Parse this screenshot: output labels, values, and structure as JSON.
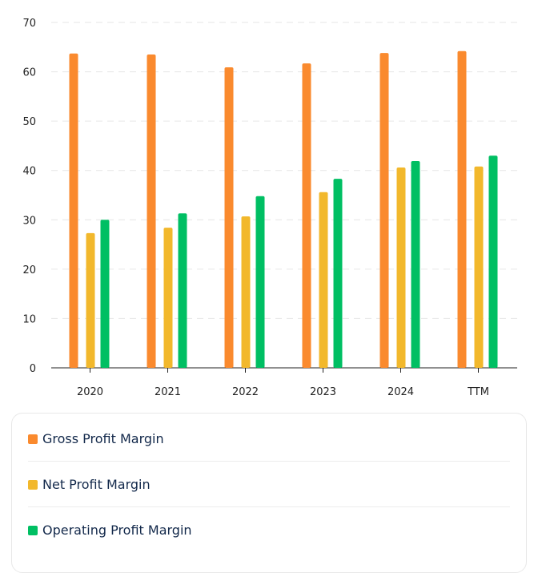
{
  "chart_data": {
    "type": "bar",
    "categories": [
      "2020",
      "2021",
      "2022",
      "2023",
      "2024",
      "TTM"
    ],
    "series": [
      {
        "name": "Gross Profit Margin",
        "color": "#fa8a2e",
        "values": [
          63.7,
          63.5,
          60.9,
          61.7,
          63.8,
          64.2
        ]
      },
      {
        "name": "Net Profit Margin",
        "color": "#f2b82c",
        "values": [
          27.3,
          28.4,
          30.7,
          35.6,
          40.6,
          40.8
        ]
      },
      {
        "name": "Operating Profit Margin",
        "color": "#00bf63",
        "values": [
          30.0,
          31.3,
          34.8,
          38.3,
          41.9,
          43.0
        ]
      }
    ],
    "yticks": [
      0,
      10,
      20,
      30,
      40,
      50,
      60,
      70
    ],
    "ylim": [
      0,
      70
    ],
    "grid": true,
    "legend_position": "bottom"
  }
}
